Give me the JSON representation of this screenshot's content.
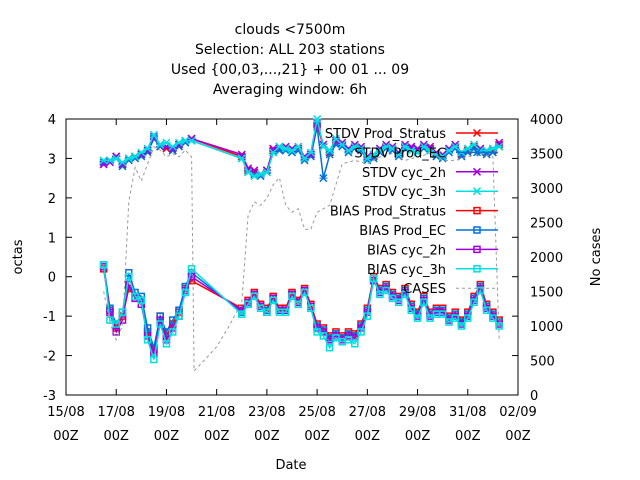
{
  "chart_data": {
    "type": "line",
    "title_lines": [
      "clouds <7500m",
      "Selection: ALL    203 stations",
      "Used {00,03,...,21} + 00 01 ... 09",
      "Averaging window:  6h"
    ],
    "xlabel": "Date",
    "ylabel": "octas",
    "y2label": "No cases",
    "xlim": [
      0,
      18
    ],
    "ylim": [
      -3,
      4
    ],
    "y2lim": [
      0,
      4000
    ],
    "y_ticks": [
      "-3",
      "-2",
      "-1",
      "0",
      "1",
      "2",
      "3",
      "4"
    ],
    "y2_ticks": [
      "0",
      "500",
      "1000",
      "1500",
      "2000",
      "2500",
      "3000",
      "3500",
      "4000"
    ],
    "x_ticks": [
      {
        "x": 0,
        "date": "15/08",
        "time": "00Z"
      },
      {
        "x": 2,
        "date": "17/08",
        "time": "00Z"
      },
      {
        "x": 4,
        "date": "19/08",
        "time": "00Z"
      },
      {
        "x": 6,
        "date": "21/08",
        "time": "00Z"
      },
      {
        "x": 8,
        "date": "23/08",
        "time": "00Z"
      },
      {
        "x": 10,
        "date": "25/08",
        "time": "00Z"
      },
      {
        "x": 12,
        "date": "27/08",
        "time": "00Z"
      },
      {
        "x": 14,
        "date": "29/08",
        "time": "00Z"
      },
      {
        "x": 16,
        "date": "31/08",
        "time": "00Z"
      },
      {
        "x": 18,
        "date": "02/09",
        "time": "00Z"
      }
    ],
    "grid": false,
    "legend_position": "top-right",
    "x": [
      1.5,
      1.75,
      2,
      2.25,
      2.5,
      2.75,
      3,
      3.25,
      3.5,
      3.75,
      4,
      4.25,
      4.5,
      4.75,
      5,
      7,
      7.25,
      7.5,
      7.75,
      8,
      8.25,
      8.5,
      8.75,
      9,
      9.25,
      9.5,
      9.75,
      10,
      10.25,
      10.5,
      10.75,
      11,
      11.25,
      11.5,
      11.75,
      12,
      12.25,
      12.5,
      12.75,
      13,
      13.25,
      13.5,
      13.75,
      14,
      14.25,
      14.5,
      14.75,
      15,
      15.25,
      15.5,
      15.75,
      16,
      16.25,
      16.5,
      16.75,
      17,
      17.25
    ],
    "series": [
      {
        "name": "STDV Prod_Stratus",
        "color": "#ff0000",
        "marker": "x",
        "axis": "y",
        "values": [
          2.85,
          2.95,
          3.05,
          2.85,
          3.0,
          3.05,
          3.1,
          3.2,
          3.5,
          3.3,
          3.25,
          3.2,
          3.35,
          3.4,
          3.5,
          3.05,
          2.7,
          2.65,
          2.6,
          2.7,
          3.2,
          3.25,
          3.25,
          3.2,
          3.25,
          3.0,
          3.1,
          3.85,
          3.3,
          3.15,
          3.4,
          3.35,
          3.2,
          3.3,
          3.25,
          3.0,
          3.05,
          3.2,
          3.3,
          3.25,
          3.1,
          3.3,
          3.25,
          3.2,
          3.3,
          3.25,
          3.1,
          3.05,
          3.2,
          3.3,
          3.1,
          3.2,
          3.3,
          3.2,
          3.15,
          3.2,
          3.35
        ]
      },
      {
        "name": "STDV Prod_EC",
        "color": "#0070dd",
        "marker": "x",
        "axis": "y",
        "values": [
          2.9,
          2.95,
          3.0,
          2.8,
          2.95,
          3.0,
          3.05,
          3.15,
          3.5,
          3.3,
          3.3,
          3.2,
          3.3,
          3.4,
          3.45,
          3.0,
          2.65,
          2.6,
          2.55,
          2.65,
          3.15,
          3.2,
          3.2,
          3.15,
          3.2,
          2.95,
          3.05,
          3.8,
          2.5,
          3.1,
          3.35,
          3.3,
          3.15,
          3.25,
          3.2,
          2.95,
          3.0,
          3.15,
          3.25,
          3.2,
          3.05,
          3.25,
          3.2,
          3.15,
          3.25,
          3.2,
          3.05,
          3.0,
          3.15,
          3.25,
          3.05,
          3.15,
          3.25,
          3.15,
          3.1,
          3.15,
          3.3
        ]
      },
      {
        "name": "STDV cyc_2h",
        "color": "#a000e0",
        "marker": "x",
        "axis": "y",
        "values": [
          2.85,
          2.9,
          3.05,
          2.85,
          3.0,
          3.05,
          3.1,
          3.2,
          3.55,
          3.35,
          3.3,
          3.25,
          3.35,
          3.45,
          3.5,
          3.1,
          2.75,
          2.7,
          2.6,
          2.7,
          3.25,
          3.3,
          3.3,
          3.25,
          3.3,
          3.05,
          3.1,
          3.9,
          3.35,
          3.2,
          3.45,
          3.4,
          3.25,
          3.35,
          3.3,
          3.05,
          3.1,
          3.25,
          3.35,
          3.3,
          3.15,
          3.35,
          3.3,
          3.25,
          3.35,
          3.3,
          3.15,
          3.1,
          3.25,
          3.35,
          3.15,
          3.25,
          3.35,
          3.25,
          3.2,
          3.25,
          3.4
        ]
      },
      {
        "name": "STDV cyc_3h",
        "color": "#00e0e0",
        "marker": "x",
        "axis": "y",
        "values": [
          2.95,
          2.95,
          3.0,
          2.9,
          3.0,
          3.05,
          3.15,
          3.25,
          3.6,
          3.35,
          3.4,
          3.3,
          3.4,
          3.45,
          3.45,
          3.0,
          2.65,
          2.55,
          2.6,
          2.65,
          3.15,
          3.3,
          3.25,
          3.2,
          3.3,
          3.0,
          3.15,
          4.0,
          3.3,
          3.2,
          3.5,
          3.35,
          3.2,
          3.3,
          3.25,
          3.0,
          3.1,
          3.2,
          3.3,
          3.25,
          3.1,
          3.3,
          3.2,
          3.15,
          3.3,
          3.2,
          3.1,
          3.05,
          3.2,
          3.3,
          3.15,
          3.25,
          3.35,
          3.2,
          3.2,
          3.25,
          3.3
        ]
      },
      {
        "name": "BIAS Prod_Stratus",
        "color": "#ff0000",
        "marker": "square",
        "axis": "y",
        "values": [
          0.2,
          -0.85,
          -1.3,
          -1.0,
          -0.3,
          -0.5,
          -0.6,
          -1.4,
          -1.85,
          -1.0,
          -1.5,
          -1.2,
          -0.9,
          -0.3,
          -0.1,
          -0.8,
          -0.6,
          -0.4,
          -0.7,
          -0.8,
          -0.5,
          -0.8,
          -0.8,
          -0.4,
          -0.6,
          -0.3,
          -0.7,
          -1.2,
          -1.3,
          -1.5,
          -1.4,
          -1.5,
          -1.4,
          -1.45,
          -1.2,
          -0.8,
          0.0,
          -0.3,
          -0.2,
          -0.4,
          -0.5,
          -0.3,
          -0.7,
          -0.9,
          -0.5,
          -0.9,
          -0.8,
          -0.8,
          -1.0,
          -0.9,
          -1.1,
          -0.9,
          -0.5,
          -0.2,
          -0.7,
          -0.9,
          -1.1
        ]
      },
      {
        "name": "BIAS Prod_EC",
        "color": "#0070dd",
        "marker": "square",
        "axis": "y",
        "values": [
          0.3,
          -0.8,
          -1.2,
          -0.9,
          0.1,
          -0.4,
          -0.5,
          -1.3,
          -1.8,
          -1.0,
          -1.4,
          -1.1,
          -0.85,
          -0.25,
          0.1,
          -0.9,
          -0.7,
          -0.45,
          -0.75,
          -0.85,
          -0.55,
          -0.85,
          -0.85,
          -0.45,
          -0.65,
          -0.35,
          -0.75,
          -1.25,
          -1.35,
          -1.55,
          -1.45,
          -1.55,
          -1.45,
          -1.5,
          -1.25,
          -0.85,
          -0.05,
          -0.35,
          -0.25,
          -0.45,
          -0.55,
          -0.35,
          -0.75,
          -0.95,
          -0.55,
          -0.95,
          -0.85,
          -0.85,
          -1.05,
          -0.95,
          -1.15,
          -0.95,
          -0.55,
          -0.25,
          -0.75,
          -0.95,
          -1.15
        ]
      },
      {
        "name": "BIAS cyc_2h",
        "color": "#a000e0",
        "marker": "square",
        "axis": "y",
        "values": [
          0.25,
          -0.9,
          -1.4,
          -1.1,
          -0.2,
          -0.55,
          -0.7,
          -1.5,
          -1.95,
          -1.1,
          -1.6,
          -1.3,
          -1.0,
          -0.35,
          0.0,
          -0.85,
          -0.65,
          -0.45,
          -0.75,
          -0.9,
          -0.55,
          -0.85,
          -0.85,
          -0.45,
          -0.65,
          -0.35,
          -0.75,
          -1.3,
          -1.4,
          -1.6,
          -1.5,
          -1.6,
          -1.5,
          -1.55,
          -1.3,
          -0.9,
          -0.1,
          -0.4,
          -0.3,
          -0.5,
          -0.6,
          -0.4,
          -0.8,
          -1.0,
          -0.6,
          -1.0,
          -0.9,
          -0.9,
          -1.1,
          -1.0,
          -1.2,
          -1.0,
          -0.6,
          -0.3,
          -0.8,
          -1.0,
          -1.2
        ]
      },
      {
        "name": "BIAS cyc_3h",
        "color": "#00e0e0",
        "marker": "square",
        "axis": "y",
        "values": [
          0.3,
          -1.1,
          -1.2,
          -0.9,
          0.0,
          -0.5,
          -0.6,
          -1.6,
          -2.1,
          -1.2,
          -1.7,
          -1.4,
          -1.0,
          -0.4,
          0.2,
          -0.95,
          -0.7,
          -0.5,
          -0.8,
          -0.9,
          -0.6,
          -0.9,
          -0.9,
          -0.5,
          -0.7,
          -0.4,
          -0.8,
          -1.4,
          -1.5,
          -1.8,
          -1.55,
          -1.65,
          -1.6,
          -1.7,
          -1.4,
          -1.0,
          -0.05,
          -0.45,
          -0.35,
          -0.55,
          -0.65,
          -0.45,
          -0.85,
          -1.05,
          -0.65,
          -1.05,
          -0.95,
          -0.95,
          -1.15,
          -1.05,
          -1.25,
          -1.05,
          -0.65,
          -0.35,
          -0.85,
          -1.05,
          -1.25
        ]
      },
      {
        "name": "CASES",
        "color": "#999999",
        "marker": "dashed-line",
        "axis": "y2",
        "x": [
          1.5,
          1.75,
          2,
          2.25,
          2.5,
          2.75,
          3,
          3.25,
          3.5,
          3.75,
          4,
          4.25,
          4.5,
          4.75,
          5,
          5.1,
          5.5,
          6,
          6.5,
          7,
          7.25,
          7.5,
          7.75,
          8,
          8.25,
          8.5,
          8.75,
          9,
          9.25,
          9.5,
          9.75,
          10,
          10.5,
          11,
          11.5,
          12,
          12.5,
          13,
          13.5,
          14,
          14.5,
          15,
          15.5,
          16,
          16.5,
          17,
          17.25
        ],
        "values": [
          1500,
          1050,
          800,
          1000,
          2800,
          3300,
          3100,
          3350,
          3600,
          3550,
          3450,
          3500,
          3450,
          3550,
          3450,
          350,
          500,
          700,
          1000,
          1350,
          2600,
          2800,
          2750,
          2850,
          3050,
          3150,
          2750,
          2650,
          2700,
          2400,
          2400,
          2650,
          2750,
          3350,
          3400,
          3350,
          3450,
          3500,
          3400,
          3450,
          3500,
          3400,
          3400,
          3450,
          3500,
          3450,
          800
        ]
      }
    ]
  }
}
